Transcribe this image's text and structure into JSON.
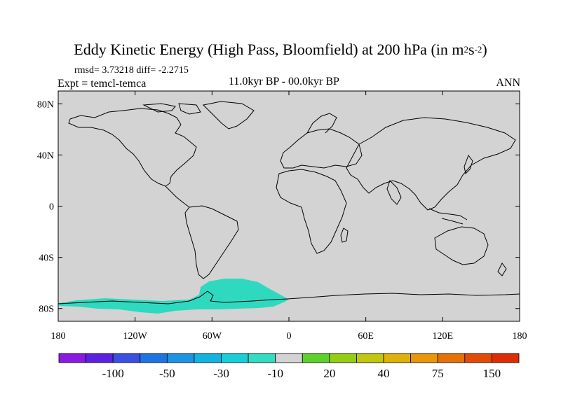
{
  "title": {
    "main": "Eddy Kinetic Energy (High Pass, Bloomfield) at 200 hPa (in m",
    "sup1": "2",
    "mid": "s",
    "sup2": "-2",
    "end": ")"
  },
  "stats": "rmsd= 3.73218 diff= -2.2715",
  "expt": "Expt = temcl-temca",
  "period": "11.0kyr BP - 00.0kyr BP",
  "season": "ANN",
  "map": {
    "land_color": "#d3d3d3",
    "anomaly_color": "#2fd9bf",
    "lat_ticks": [
      {
        "label": "80N",
        "lat": 80
      },
      {
        "label": "40N",
        "lat": 40
      },
      {
        "label": "0",
        "lat": 0
      },
      {
        "label": "40S",
        "lat": -40
      },
      {
        "label": "80S",
        "lat": -80
      }
    ],
    "lon_ticks": [
      {
        "label": "180",
        "lon": -180
      },
      {
        "label": "120W",
        "lon": -120
      },
      {
        "label": "60W",
        "lon": -60
      },
      {
        "label": "0",
        "lon": 0
      },
      {
        "label": "60E",
        "lon": 60
      },
      {
        "label": "120E",
        "lon": 120
      },
      {
        "label": "180",
        "lon": 180
      }
    ]
  },
  "colorbar": {
    "colors": [
      "#8a1ae0",
      "#5a22e0",
      "#3b4fe0",
      "#1f73e3",
      "#1d94e2",
      "#12b3e0",
      "#18cfd9",
      "#34dcc1",
      "#d3d3d3",
      "#5ed12c",
      "#95cd14",
      "#c1c70f",
      "#dfb20b",
      "#e8960a",
      "#e47209",
      "#e04c06",
      "#dd2d05"
    ],
    "labels": [
      {
        "text": "-100",
        "boundary": 2
      },
      {
        "text": "-50",
        "boundary": 4
      },
      {
        "text": "-30",
        "boundary": 6
      },
      {
        "text": "-10",
        "boundary": 8
      },
      {
        "text": "20",
        "boundary": 10
      },
      {
        "text": "40",
        "boundary": 12
      },
      {
        "text": "75",
        "boundary": 14
      },
      {
        "text": "150",
        "boundary": 16
      }
    ]
  }
}
